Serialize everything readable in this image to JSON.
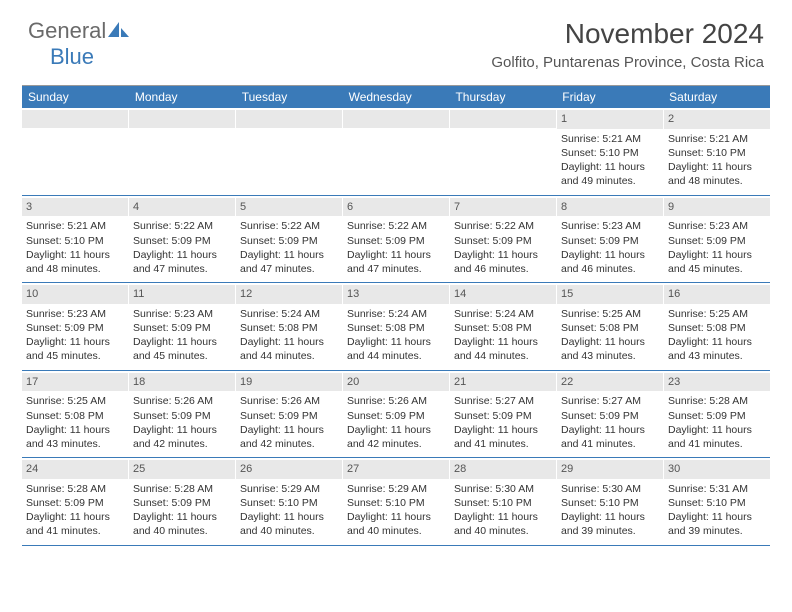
{
  "brand": {
    "general": "General",
    "blue": "Blue",
    "sail_color": "#3a7ab8"
  },
  "title": "November 2024",
  "location": "Golfito, Puntarenas Province, Costa Rica",
  "colors": {
    "header_bg": "#3a7ab8",
    "header_text": "#ffffff",
    "daynum_bg": "#e8e8e8",
    "row_border": "#3a7ab8",
    "text": "#333333"
  },
  "day_labels": [
    "Sunday",
    "Monday",
    "Tuesday",
    "Wednesday",
    "Thursday",
    "Friday",
    "Saturday"
  ],
  "weeks": [
    [
      {
        "n": "",
        "sunrise": "",
        "sunset": "",
        "daylight": ""
      },
      {
        "n": "",
        "sunrise": "",
        "sunset": "",
        "daylight": ""
      },
      {
        "n": "",
        "sunrise": "",
        "sunset": "",
        "daylight": ""
      },
      {
        "n": "",
        "sunrise": "",
        "sunset": "",
        "daylight": ""
      },
      {
        "n": "",
        "sunrise": "",
        "sunset": "",
        "daylight": ""
      },
      {
        "n": "1",
        "sunrise": "Sunrise: 5:21 AM",
        "sunset": "Sunset: 5:10 PM",
        "daylight": "Daylight: 11 hours and 49 minutes."
      },
      {
        "n": "2",
        "sunrise": "Sunrise: 5:21 AM",
        "sunset": "Sunset: 5:10 PM",
        "daylight": "Daylight: 11 hours and 48 minutes."
      }
    ],
    [
      {
        "n": "3",
        "sunrise": "Sunrise: 5:21 AM",
        "sunset": "Sunset: 5:10 PM",
        "daylight": "Daylight: 11 hours and 48 minutes."
      },
      {
        "n": "4",
        "sunrise": "Sunrise: 5:22 AM",
        "sunset": "Sunset: 5:09 PM",
        "daylight": "Daylight: 11 hours and 47 minutes."
      },
      {
        "n": "5",
        "sunrise": "Sunrise: 5:22 AM",
        "sunset": "Sunset: 5:09 PM",
        "daylight": "Daylight: 11 hours and 47 minutes."
      },
      {
        "n": "6",
        "sunrise": "Sunrise: 5:22 AM",
        "sunset": "Sunset: 5:09 PM",
        "daylight": "Daylight: 11 hours and 47 minutes."
      },
      {
        "n": "7",
        "sunrise": "Sunrise: 5:22 AM",
        "sunset": "Sunset: 5:09 PM",
        "daylight": "Daylight: 11 hours and 46 minutes."
      },
      {
        "n": "8",
        "sunrise": "Sunrise: 5:23 AM",
        "sunset": "Sunset: 5:09 PM",
        "daylight": "Daylight: 11 hours and 46 minutes."
      },
      {
        "n": "9",
        "sunrise": "Sunrise: 5:23 AM",
        "sunset": "Sunset: 5:09 PM",
        "daylight": "Daylight: 11 hours and 45 minutes."
      }
    ],
    [
      {
        "n": "10",
        "sunrise": "Sunrise: 5:23 AM",
        "sunset": "Sunset: 5:09 PM",
        "daylight": "Daylight: 11 hours and 45 minutes."
      },
      {
        "n": "11",
        "sunrise": "Sunrise: 5:23 AM",
        "sunset": "Sunset: 5:09 PM",
        "daylight": "Daylight: 11 hours and 45 minutes."
      },
      {
        "n": "12",
        "sunrise": "Sunrise: 5:24 AM",
        "sunset": "Sunset: 5:08 PM",
        "daylight": "Daylight: 11 hours and 44 minutes."
      },
      {
        "n": "13",
        "sunrise": "Sunrise: 5:24 AM",
        "sunset": "Sunset: 5:08 PM",
        "daylight": "Daylight: 11 hours and 44 minutes."
      },
      {
        "n": "14",
        "sunrise": "Sunrise: 5:24 AM",
        "sunset": "Sunset: 5:08 PM",
        "daylight": "Daylight: 11 hours and 44 minutes."
      },
      {
        "n": "15",
        "sunrise": "Sunrise: 5:25 AM",
        "sunset": "Sunset: 5:08 PM",
        "daylight": "Daylight: 11 hours and 43 minutes."
      },
      {
        "n": "16",
        "sunrise": "Sunrise: 5:25 AM",
        "sunset": "Sunset: 5:08 PM",
        "daylight": "Daylight: 11 hours and 43 minutes."
      }
    ],
    [
      {
        "n": "17",
        "sunrise": "Sunrise: 5:25 AM",
        "sunset": "Sunset: 5:08 PM",
        "daylight": "Daylight: 11 hours and 43 minutes."
      },
      {
        "n": "18",
        "sunrise": "Sunrise: 5:26 AM",
        "sunset": "Sunset: 5:09 PM",
        "daylight": "Daylight: 11 hours and 42 minutes."
      },
      {
        "n": "19",
        "sunrise": "Sunrise: 5:26 AM",
        "sunset": "Sunset: 5:09 PM",
        "daylight": "Daylight: 11 hours and 42 minutes."
      },
      {
        "n": "20",
        "sunrise": "Sunrise: 5:26 AM",
        "sunset": "Sunset: 5:09 PM",
        "daylight": "Daylight: 11 hours and 42 minutes."
      },
      {
        "n": "21",
        "sunrise": "Sunrise: 5:27 AM",
        "sunset": "Sunset: 5:09 PM",
        "daylight": "Daylight: 11 hours and 41 minutes."
      },
      {
        "n": "22",
        "sunrise": "Sunrise: 5:27 AM",
        "sunset": "Sunset: 5:09 PM",
        "daylight": "Daylight: 11 hours and 41 minutes."
      },
      {
        "n": "23",
        "sunrise": "Sunrise: 5:28 AM",
        "sunset": "Sunset: 5:09 PM",
        "daylight": "Daylight: 11 hours and 41 minutes."
      }
    ],
    [
      {
        "n": "24",
        "sunrise": "Sunrise: 5:28 AM",
        "sunset": "Sunset: 5:09 PM",
        "daylight": "Daylight: 11 hours and 41 minutes."
      },
      {
        "n": "25",
        "sunrise": "Sunrise: 5:28 AM",
        "sunset": "Sunset: 5:09 PM",
        "daylight": "Daylight: 11 hours and 40 minutes."
      },
      {
        "n": "26",
        "sunrise": "Sunrise: 5:29 AM",
        "sunset": "Sunset: 5:10 PM",
        "daylight": "Daylight: 11 hours and 40 minutes."
      },
      {
        "n": "27",
        "sunrise": "Sunrise: 5:29 AM",
        "sunset": "Sunset: 5:10 PM",
        "daylight": "Daylight: 11 hours and 40 minutes."
      },
      {
        "n": "28",
        "sunrise": "Sunrise: 5:30 AM",
        "sunset": "Sunset: 5:10 PM",
        "daylight": "Daylight: 11 hours and 40 minutes."
      },
      {
        "n": "29",
        "sunrise": "Sunrise: 5:30 AM",
        "sunset": "Sunset: 5:10 PM",
        "daylight": "Daylight: 11 hours and 39 minutes."
      },
      {
        "n": "30",
        "sunrise": "Sunrise: 5:31 AM",
        "sunset": "Sunset: 5:10 PM",
        "daylight": "Daylight: 11 hours and 39 minutes."
      }
    ]
  ]
}
